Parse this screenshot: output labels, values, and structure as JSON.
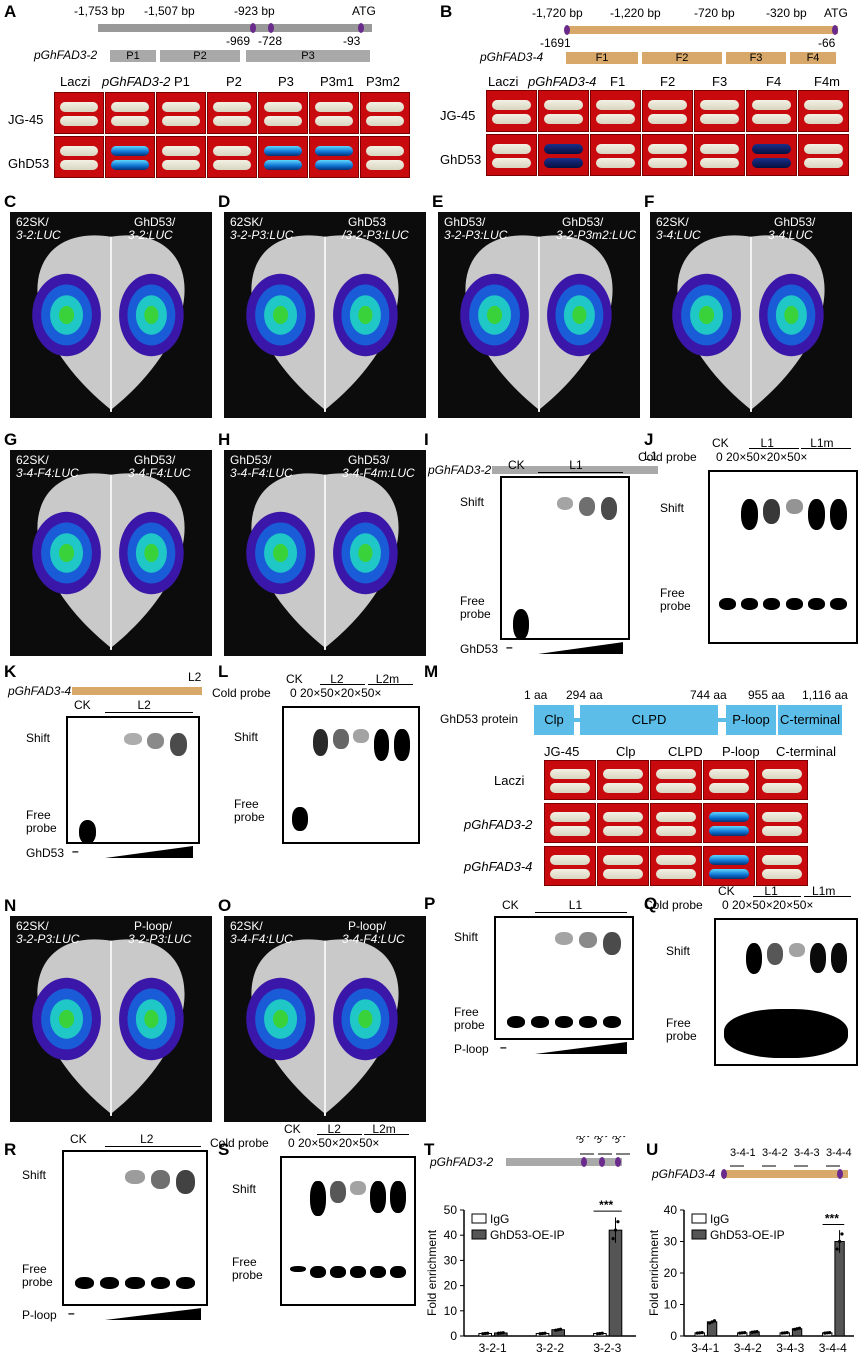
{
  "panels": [
    "A",
    "B",
    "C",
    "D",
    "E",
    "F",
    "G",
    "H",
    "I",
    "J",
    "K",
    "L",
    "M",
    "N",
    "O",
    "P",
    "Q",
    "R",
    "S",
    "T",
    "U"
  ],
  "A": {
    "positions": [
      "-1,753 bp",
      "-1,507 bp",
      "-923 bp",
      "ATG"
    ],
    "lower_positions": [
      "-969",
      "-728",
      "-93"
    ],
    "promoter": "pGhFAD3-2",
    "fragments": [
      "P1",
      "P2",
      "P3"
    ],
    "columns": [
      "Laczi",
      "pGhFAD3-2",
      "P1",
      "P2",
      "P3",
      "P3m1",
      "P3m2"
    ],
    "rows": [
      "JG-45",
      "GhD53"
    ]
  },
  "B": {
    "positions": [
      "-1,720 bp",
      "-1,220 bp",
      "-720 bp",
      "-320 bp",
      "ATG"
    ],
    "lower_positions": [
      "-1691",
      "-66"
    ],
    "promoter": "pGhFAD3-4",
    "fragments": [
      "F1",
      "F2",
      "F3",
      "F4"
    ],
    "columns": [
      "Laczi",
      "pGhFAD3-4",
      "F1",
      "F2",
      "F3",
      "F4",
      "F4m"
    ],
    "rows": [
      "JG-45",
      "GhD53"
    ]
  },
  "leaves": {
    "C": {
      "left1": "62SK/",
      "left2": "3-2:LUC",
      "right1": "GhD53/",
      "right2": "3-2:LUC"
    },
    "D": {
      "left1": "62SK/",
      "left2": "3-2-P3:LUC",
      "right1": "GhD53",
      "right2": "/3-2-P3:LUC"
    },
    "E": {
      "left1": "GhD53/",
      "left2": "3-2-P3:LUC",
      "right1": "GhD53/",
      "right2": "3-2-P3m2:LUC"
    },
    "F": {
      "left1": "62SK/",
      "left2": "3-4:LUC",
      "right1": "GhD53/",
      "right2": "3-4:LUC"
    },
    "G": {
      "left1": "62SK/",
      "left2": "3-4-F4:LUC",
      "right1": "GhD53/",
      "right2": "3-4-F4:LUC"
    },
    "H": {
      "left1": "GhD53/",
      "left2": "3-4-F4:LUC",
      "right1": "GhD53/",
      "right2": "3-4-F4m:LUC"
    },
    "N": {
      "left1": "62SK/",
      "left2": "3-2-P3:LUC",
      "right1": "P-loop/",
      "right2": "3-2-P3:LUC"
    },
    "O": {
      "left1": "62SK/",
      "left2": "3-4-F4:LUC",
      "right1": "P-loop/",
      "right2": "3-4-F4:LUC"
    }
  },
  "gels": {
    "I": {
      "promoter": "pGhFAD3-2",
      "probe": "L1",
      "ck": "CK",
      "lane": "L1",
      "shift": "Shift",
      "free1": "Free",
      "free2": "probe",
      "protein": "GhD53"
    },
    "J": {
      "cold": "Cold probe",
      "ck": "CK",
      "zero": "0",
      "l1": "L1",
      "l1m": "L1m",
      "conc": "0  20×50×20×50×",
      "shift": "Shift",
      "free1": "Free",
      "free2": "probe"
    },
    "K": {
      "promoter": "pGhFAD3-4",
      "probe": "L2",
      "ck": "CK",
      "lane": "L2",
      "shift": "Shift",
      "free1": "Free",
      "free2": "probe",
      "protein": "GhD53"
    },
    "L": {
      "cold": "Cold probe",
      "ck": "CK",
      "zero": "0",
      "l2": "L2",
      "l2m": "L2m",
      "conc": "0 20×50×20×50×",
      "shift": "Shift",
      "free1": "Free",
      "free2": "probe"
    },
    "P": {
      "ck": "CK",
      "lane": "L1",
      "shift": "Shift",
      "free1": "Free",
      "free2": "probe",
      "protein": "P-loop"
    },
    "Q": {
      "cold": "Cold probe",
      "ck": "CK",
      "zero": "0",
      "l1": "L1",
      "l1m": "L1m",
      "conc": "0 20×50×20×50×",
      "shift": "Shift",
      "free1": "Free",
      "free2": "probe"
    },
    "R": {
      "ck": "CK",
      "lane": "L2",
      "shift": "Shift",
      "free1": "Free",
      "free2": "probe",
      "protein": "P-loop"
    },
    "S": {
      "cold": "Cold probe",
      "ck": "CK",
      "zero": "0",
      "l2": "L2",
      "l2m": "L2m",
      "conc": "0 20×50×20×50×",
      "shift": "Shift",
      "free1": "Free",
      "free2": "probe"
    }
  },
  "M": {
    "positions": [
      "1 aa",
      "294 aa",
      "744 aa",
      "955 aa",
      "1,116 aa"
    ],
    "protein": "GhD53 protein",
    "domains": [
      "Clp",
      "CLPD",
      "P-loop",
      "C-terminal"
    ],
    "columns": [
      "JG-45",
      "Clp",
      "CLPD",
      "P-loop",
      "C-terminal"
    ],
    "rows": [
      "Laczi",
      "pGhFAD3-2",
      "pGhFAD3-4"
    ],
    "colors": {
      "domain": "#5bbde8"
    }
  },
  "chart_data": [
    {
      "type": "bar",
      "panel": "T",
      "promoter": "pGhFAD3-2",
      "sites": [
        "3-2-1",
        "3-2-2",
        "3-2-3"
      ],
      "categories": [
        "3-2-1",
        "3-2-2",
        "3-2-3"
      ],
      "ylabel": "Fold enrichment",
      "ylim": [
        0,
        50
      ],
      "yticks": [
        "0",
        "10",
        "20",
        "30",
        "40",
        "50"
      ],
      "series": [
        {
          "name": "IgG",
          "values": [
            1,
            1,
            1
          ]
        },
        {
          "name": "GhD53-OE-IP",
          "values": [
            1.2,
            2.5,
            42
          ]
        }
      ],
      "annotation": "***",
      "legend": "top-left"
    },
    {
      "type": "bar",
      "panel": "U",
      "promoter": "pGhFAD3-4",
      "sites": [
        "3-4-1",
        "3-4-2",
        "3-4-3",
        "3-4-4"
      ],
      "categories": [
        "3-4-1",
        "3-4-2",
        "3-4-3",
        "3-4-4"
      ],
      "ylabel": "Fold enrichment",
      "ylim": [
        0,
        40
      ],
      "yticks": [
        "0",
        "10",
        "20",
        "30",
        "40"
      ],
      "series": [
        {
          "name": "IgG",
          "values": [
            1,
            1,
            1,
            1
          ]
        },
        {
          "name": "GhD53-OE-IP",
          "values": [
            4.5,
            1.3,
            2.3,
            30
          ]
        }
      ],
      "annotation": "***",
      "legend": "top-left"
    }
  ]
}
